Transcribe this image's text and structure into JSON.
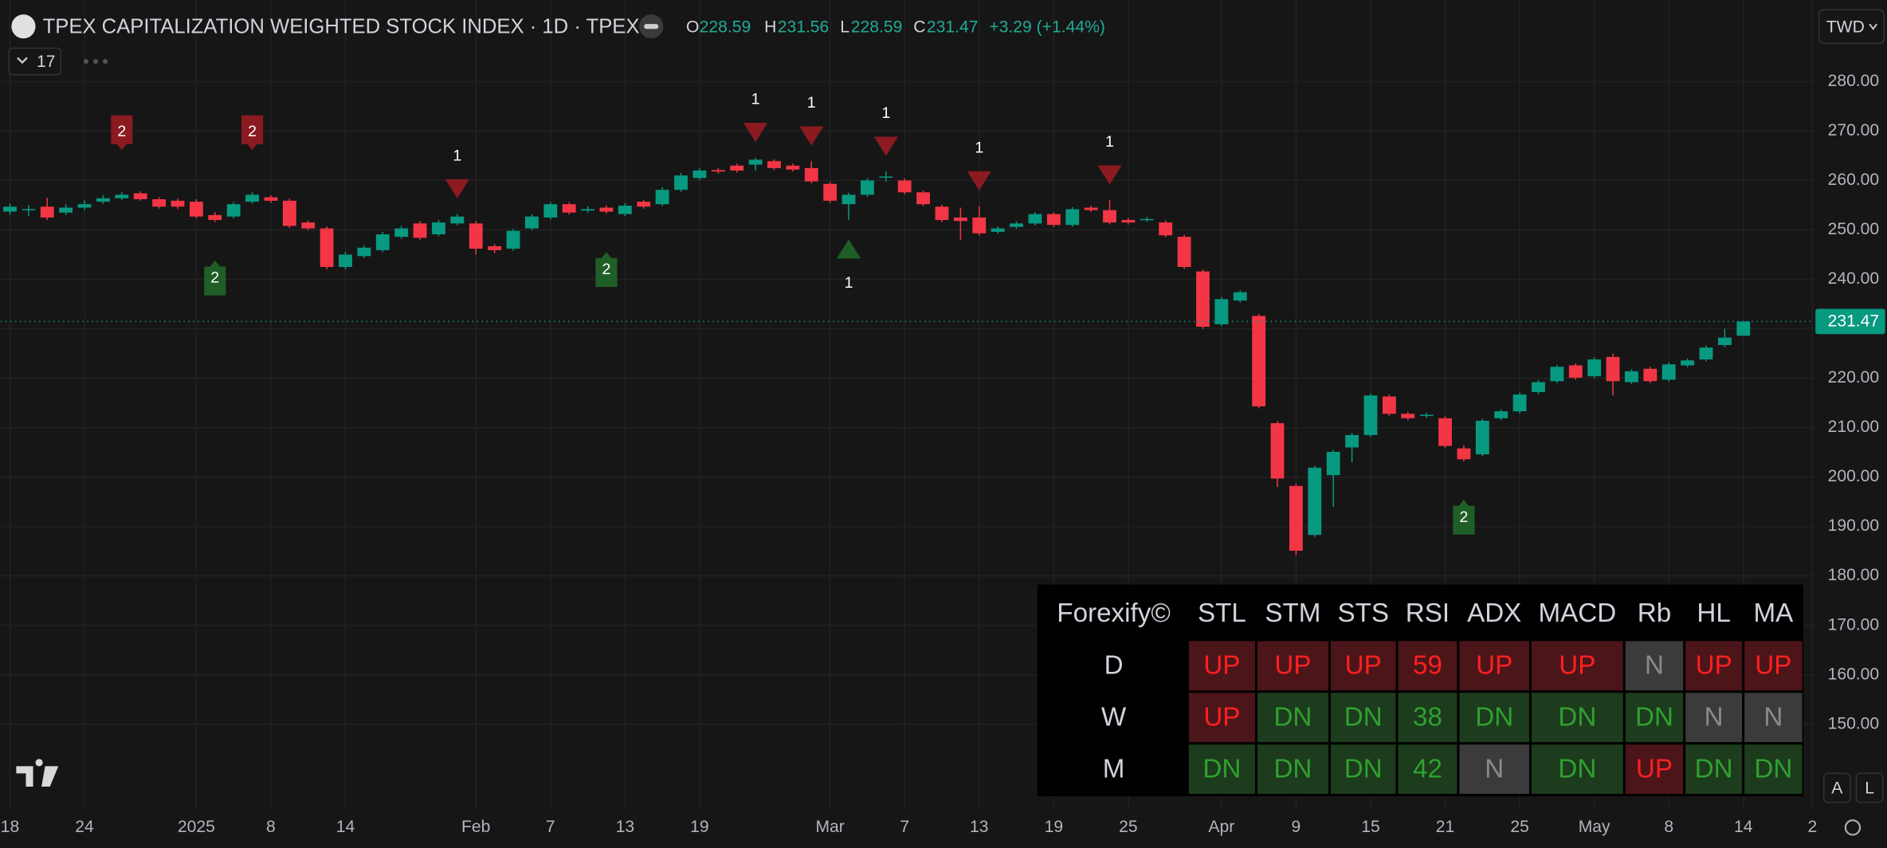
{
  "header": {
    "title": "TPEX CAPITALIZATION WEIGHTED STOCK INDEX · 1D · TPEX",
    "ohlc_labels": [
      "O",
      "H",
      "L",
      "C"
    ],
    "change": "+3.29 (+1.44%)",
    "indicator_count": 17,
    "currency": "TWD"
  },
  "chart_data": {
    "type": "candlestick",
    "open": [
      253.7,
      254.0,
      254.7,
      253.5,
      254.5,
      255.7,
      256.4,
      257.4,
      256.2,
      255.9,
      255.7,
      253.0,
      252.7,
      255.7,
      256.6,
      255.9,
      251.5,
      250.3,
      242.5,
      244.7,
      245.9,
      248.6,
      251.3,
      249.1,
      251.3,
      251.3,
      246.7,
      246.2,
      250.3,
      252.5,
      255.2,
      253.9,
      254.5,
      253.2,
      255.7,
      255.2,
      258.1,
      260.5,
      262.1,
      263.0,
      263.2,
      263.9,
      263.0,
      262.5,
      259.3,
      255.2,
      257.1,
      260.6,
      260.0,
      257.6,
      254.7,
      252.5,
      252.5,
      249.6,
      250.6,
      251.3,
      253.2,
      251.0,
      254.5,
      254.0,
      252.0,
      252.0,
      251.5,
      248.6,
      241.6,
      230.9,
      235.7,
      232.6,
      210.9,
      198.2,
      188.3,
      200.4,
      206.0,
      208.5,
      216.3,
      212.8,
      212.4,
      211.9,
      205.8,
      204.6,
      211.9,
      213.3,
      217.2,
      219.4,
      222.6,
      220.4,
      224.3,
      219.2,
      221.9,
      219.7,
      222.6,
      223.8,
      226.7,
      228.59
    ],
    "high": [
      255.3,
      255.0,
      256.5,
      255.2,
      256.0,
      257.0,
      257.6,
      257.8,
      256.6,
      256.3,
      256.2,
      253.6,
      255.6,
      257.6,
      257.0,
      256.3,
      251.9,
      250.7,
      245.6,
      246.9,
      249.6,
      250.8,
      251.8,
      252.0,
      253.2,
      251.8,
      247.1,
      250.2,
      253.2,
      255.6,
      255.6,
      254.8,
      254.9,
      255.4,
      256.1,
      258.6,
      261.5,
      262.5,
      262.5,
      263.4,
      264.6,
      264.3,
      263.4,
      263.9,
      259.7,
      257.5,
      260.4,
      261.8,
      260.4,
      258.0,
      255.1,
      254.5,
      254.8,
      250.7,
      251.7,
      253.6,
      253.6,
      254.6,
      254.9,
      256.0,
      252.4,
      252.6,
      251.9,
      249.0,
      242.0,
      236.4,
      237.8,
      233.0,
      211.3,
      198.6,
      202.3,
      205.5,
      208.9,
      216.9,
      216.7,
      213.2,
      213.0,
      212.3,
      206.4,
      211.8,
      213.7,
      217.1,
      219.6,
      222.7,
      223.0,
      224.2,
      225.0,
      221.8,
      222.3,
      223.2,
      224.0,
      226.6,
      230.0,
      231.56
    ],
    "low": [
      253.1,
      252.8,
      252.0,
      253.0,
      254.0,
      255.3,
      256.0,
      255.9,
      254.3,
      254.2,
      252.3,
      251.6,
      252.3,
      255.3,
      255.5,
      250.4,
      249.9,
      242.0,
      242.0,
      244.3,
      245.5,
      248.2,
      248.0,
      248.7,
      250.9,
      245.0,
      245.3,
      245.8,
      249.9,
      252.1,
      253.1,
      253.5,
      253.3,
      252.8,
      254.3,
      254.8,
      257.7,
      260.1,
      261.4,
      261.6,
      262.0,
      262.1,
      261.8,
      259.4,
      255.5,
      252.0,
      256.7,
      259.8,
      257.2,
      254.8,
      251.6,
      248.0,
      248.9,
      249.2,
      250.2,
      250.9,
      250.6,
      250.6,
      253.6,
      251.1,
      251.1,
      251.6,
      248.5,
      242.1,
      230.0,
      230.5,
      235.3,
      213.9,
      198.0,
      184.2,
      187.9,
      194.0,
      203.0,
      208.1,
      212.4,
      211.5,
      212.0,
      205.9,
      203.2,
      204.2,
      211.5,
      212.9,
      216.8,
      219.0,
      219.7,
      220.0,
      216.5,
      218.8,
      219.0,
      219.3,
      222.2,
      223.4,
      226.3,
      228.59
    ],
    "close": [
      254.7,
      254.2,
      252.5,
      254.5,
      255.2,
      256.4,
      257.1,
      256.2,
      254.7,
      254.7,
      252.7,
      252.0,
      255.2,
      257.1,
      255.9,
      250.8,
      250.3,
      242.5,
      245.0,
      246.4,
      249.1,
      250.3,
      248.4,
      251.5,
      252.7,
      246.2,
      245.9,
      249.8,
      252.7,
      255.2,
      253.5,
      254.2,
      253.7,
      254.9,
      254.7,
      258.1,
      261.0,
      262.0,
      261.8,
      262.0,
      264.2,
      262.5,
      262.2,
      259.8,
      255.9,
      257.1,
      260.0,
      260.8,
      257.6,
      255.2,
      252.0,
      251.8,
      249.3,
      250.3,
      251.3,
      253.2,
      251.0,
      254.2,
      254.0,
      251.5,
      251.5,
      252.2,
      248.9,
      242.5,
      230.4,
      236.0,
      237.4,
      214.3,
      199.7,
      185.1,
      201.9,
      205.1,
      208.5,
      216.5,
      212.8,
      211.9,
      212.6,
      206.3,
      203.6,
      211.4,
      213.3,
      216.7,
      219.2,
      222.3,
      220.1,
      223.8,
      219.4,
      221.4,
      219.4,
      222.8,
      223.6,
      226.2,
      228.2,
      231.47
    ],
    "up_color": "#089981",
    "down_color": "#f23645",
    "xlim": [
      -0.5,
      96.8
    ],
    "xticks": [
      {
        "value": 0,
        "label": "18"
      },
      {
        "value": 4,
        "label": "24"
      },
      {
        "value": 10,
        "label": "2025"
      },
      {
        "value": 14,
        "label": "8"
      },
      {
        "value": 18,
        "label": "14"
      },
      {
        "value": 25,
        "label": "Feb"
      },
      {
        "value": 29,
        "label": "7"
      },
      {
        "value": 33,
        "label": "13"
      },
      {
        "value": 37,
        "label": "19"
      },
      {
        "value": 44,
        "label": "Mar"
      },
      {
        "value": 48,
        "label": "7"
      },
      {
        "value": 52,
        "label": "13"
      },
      {
        "value": 56,
        "label": "19"
      },
      {
        "value": 60,
        "label": "25"
      },
      {
        "value": 65,
        "label": "Apr"
      },
      {
        "value": 69,
        "label": "9"
      },
      {
        "value": 73,
        "label": "15"
      },
      {
        "value": 77,
        "label": "21"
      },
      {
        "value": 81,
        "label": "25"
      },
      {
        "value": 85,
        "label": "May"
      },
      {
        "value": 89,
        "label": "8"
      },
      {
        "value": 93,
        "label": "14"
      },
      {
        "value": 96.7,
        "label": "2"
      }
    ],
    "ylim": [
      133,
      296.5
    ],
    "yticks": [
      {
        "value": 150,
        "label": "150.00"
      },
      {
        "value": 160,
        "label": "160.00"
      },
      {
        "value": 170,
        "label": "170.00"
      },
      {
        "value": 180,
        "label": "180.00"
      },
      {
        "value": 190,
        "label": "190.00"
      },
      {
        "value": 200,
        "label": "200.00"
      },
      {
        "value": 210,
        "label": "210.00"
      },
      {
        "value": 220,
        "label": "220.00"
      },
      {
        "value": 230,
        "label": "230.00"
      },
      {
        "value": 240,
        "label": "240.00"
      },
      {
        "value": 250,
        "label": "250.00"
      },
      {
        "value": 260,
        "label": "260.00"
      },
      {
        "value": 270,
        "label": "270.00"
      },
      {
        "value": 280,
        "label": "280.00"
      }
    ],
    "grid": true,
    "sell_color": "#8b1a21",
    "buy_color": "#1f5f27",
    "signals": [
      {
        "index": 6,
        "kind": "sell",
        "shape": "flag",
        "label": "2"
      },
      {
        "index": 13,
        "kind": "sell",
        "shape": "flag",
        "label": "2"
      },
      {
        "index": 11,
        "kind": "buy",
        "shape": "flag",
        "label": "2"
      },
      {
        "index": 32,
        "kind": "buy",
        "shape": "flag",
        "label": "2"
      },
      {
        "index": 78,
        "kind": "buy",
        "shape": "flag",
        "label": "2"
      },
      {
        "index": 24,
        "kind": "sell",
        "shape": "triangle",
        "label": "1"
      },
      {
        "index": 40,
        "kind": "sell",
        "shape": "triangle",
        "label": "1"
      },
      {
        "index": 43,
        "kind": "sell",
        "shape": "triangle",
        "label": "1"
      },
      {
        "index": 47,
        "kind": "sell",
        "shape": "triangle",
        "label": "1"
      },
      {
        "index": 52,
        "kind": "sell",
        "shape": "triangle",
        "label": "1"
      },
      {
        "index": 59,
        "kind": "sell",
        "shape": "triangle",
        "label": "1"
      },
      {
        "index": 45,
        "kind": "buy",
        "shape": "triangle",
        "label": "1"
      }
    ]
  },
  "table": {
    "title": "Forexify©",
    "columns": [
      "STL",
      "STM",
      "STS",
      "RSI",
      "ADX",
      "MACD",
      "Rb",
      "HL",
      "MA"
    ],
    "styles": {
      "up": {
        "bg": "#4c1519",
        "text": "#ff2020"
      },
      "dn": {
        "bg": "#1d3b1d",
        "text": "#2fa12f"
      },
      "n": {
        "bg": "#3b3b3b",
        "text": "#8a8a8a"
      }
    },
    "rows": [
      {
        "label": "D",
        "cells": [
          {
            "text": "UP",
            "state": "up"
          },
          {
            "text": "UP",
            "state": "up"
          },
          {
            "text": "UP",
            "state": "up"
          },
          {
            "text": 59,
            "state": "up"
          },
          {
            "text": "UP",
            "state": "up"
          },
          {
            "text": "UP",
            "state": "up"
          },
          {
            "text": "N",
            "state": "n"
          },
          {
            "text": "UP",
            "state": "up"
          },
          {
            "text": "UP",
            "state": "up"
          }
        ]
      },
      {
        "label": "W",
        "cells": [
          {
            "text": "UP",
            "state": "up"
          },
          {
            "text": "DN",
            "state": "dn"
          },
          {
            "text": "DN",
            "state": "dn"
          },
          {
            "text": 38,
            "state": "dn"
          },
          {
            "text": "DN",
            "state": "dn"
          },
          {
            "text": "DN",
            "state": "dn"
          },
          {
            "text": "DN",
            "state": "dn"
          },
          {
            "text": "N",
            "state": "n"
          },
          {
            "text": "N",
            "state": "n"
          }
        ]
      },
      {
        "label": "M",
        "cells": [
          {
            "text": "DN",
            "state": "dn"
          },
          {
            "text": "DN",
            "state": "dn"
          },
          {
            "text": "DN",
            "state": "dn"
          },
          {
            "text": 42,
            "state": "dn"
          },
          {
            "text": "N",
            "state": "n"
          },
          {
            "text": "DN",
            "state": "dn"
          },
          {
            "text": "UP",
            "state": "up"
          },
          {
            "text": "DN",
            "state": "dn"
          },
          {
            "text": "DN",
            "state": "dn"
          }
        ]
      }
    ]
  },
  "buttons": [
    "A",
    "L"
  ]
}
